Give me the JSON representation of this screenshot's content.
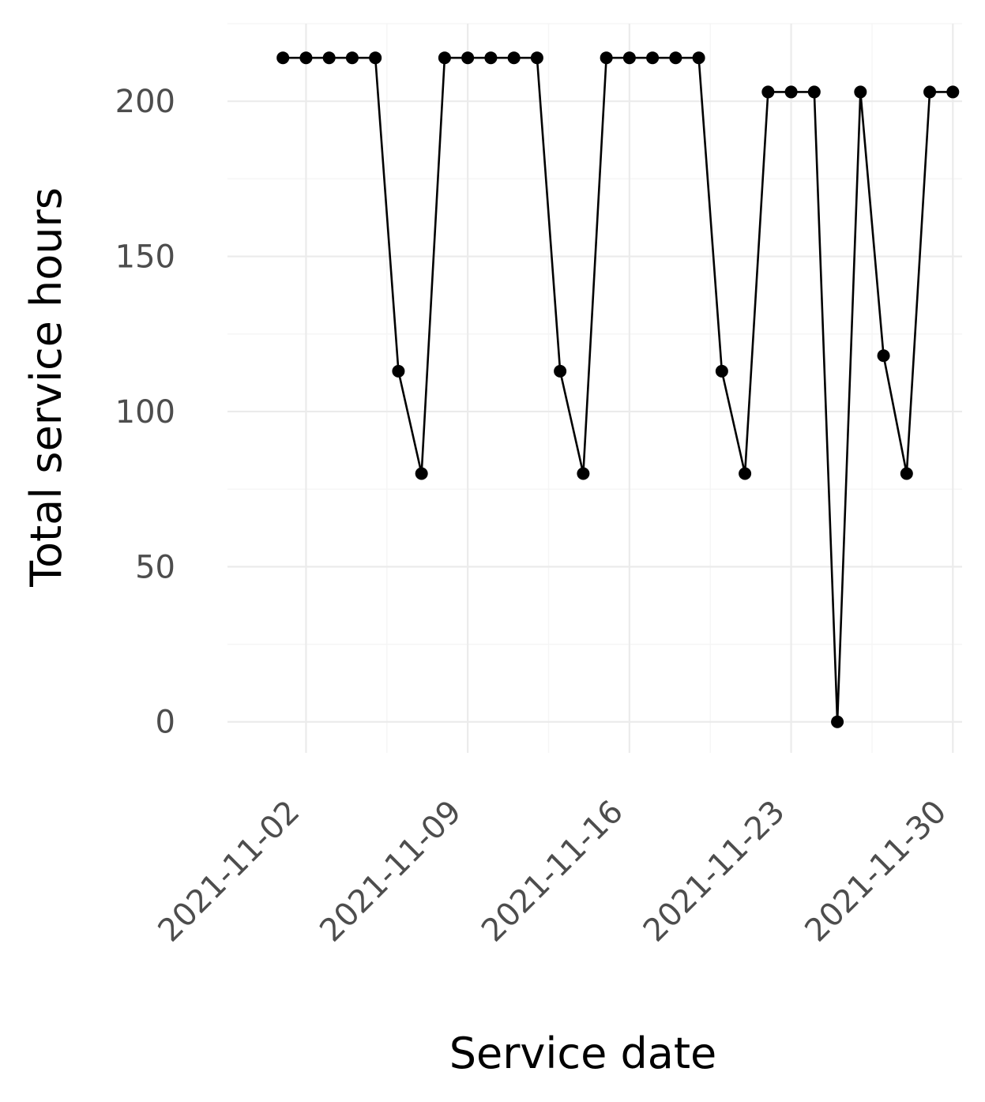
{
  "chart_data": {
    "type": "line",
    "xlabel": "Service date",
    "ylabel": "Total service hours",
    "x_ticks": [
      "2021-11-02",
      "2021-11-09",
      "2021-11-16",
      "2021-11-23",
      "2021-11-30"
    ],
    "y_ticks": [
      0,
      50,
      100,
      150,
      200
    ],
    "ylim": [
      -10,
      225
    ],
    "xlim": [
      "2021-10-30",
      "2021-12-01"
    ],
    "grid": true,
    "legend": "none",
    "colors": {
      "series": "#000000",
      "grid": "#ebebeb",
      "tick_text": "#4d4d4d",
      "background": "#ffffff"
    },
    "series": [
      {
        "x": [
          "2021-11-01",
          "2021-11-02",
          "2021-11-03",
          "2021-11-04",
          "2021-11-05",
          "2021-11-06",
          "2021-11-07",
          "2021-11-08",
          "2021-11-09",
          "2021-11-10",
          "2021-11-11",
          "2021-11-12",
          "2021-11-13",
          "2021-11-14",
          "2021-11-15",
          "2021-11-16",
          "2021-11-17",
          "2021-11-18",
          "2021-11-19",
          "2021-11-20",
          "2021-11-21",
          "2021-11-22",
          "2021-11-23",
          "2021-11-24",
          "2021-11-25",
          "2021-11-26",
          "2021-11-27",
          "2021-11-28",
          "2021-11-29",
          "2021-11-30"
        ],
        "values": [
          214,
          214,
          214,
          214,
          214,
          113,
          80,
          214,
          214,
          214,
          214,
          214,
          113,
          80,
          214,
          214,
          214,
          214,
          214,
          113,
          80,
          203,
          203,
          203,
          0,
          203,
          118,
          80,
          203,
          203
        ]
      }
    ]
  }
}
